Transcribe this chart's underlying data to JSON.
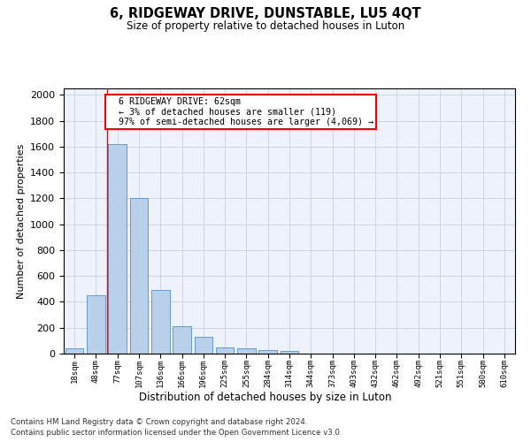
{
  "title": "6, RIDGEWAY DRIVE, DUNSTABLE, LU5 4QT",
  "subtitle": "Size of property relative to detached houses in Luton",
  "xlabel": "Distribution of detached houses by size in Luton",
  "ylabel": "Number of detached properties",
  "footer_line1": "Contains HM Land Registry data © Crown copyright and database right 2024.",
  "footer_line2": "Contains public sector information licensed under the Open Government Licence v3.0.",
  "categories": [
    "18sqm",
    "48sqm",
    "77sqm",
    "107sqm",
    "136sqm",
    "166sqm",
    "196sqm",
    "225sqm",
    "255sqm",
    "284sqm",
    "314sqm",
    "344sqm",
    "373sqm",
    "403sqm",
    "432sqm",
    "462sqm",
    "492sqm",
    "521sqm",
    "551sqm",
    "580sqm",
    "610sqm"
  ],
  "values": [
    40,
    450,
    1620,
    1200,
    490,
    210,
    130,
    50,
    40,
    28,
    18,
    0,
    0,
    0,
    0,
    0,
    0,
    0,
    0,
    0,
    0
  ],
  "bar_color": "#b8d0ea",
  "bar_edge_color": "#6699cc",
  "ylim": [
    0,
    2050
  ],
  "yticks": [
    0,
    200,
    400,
    600,
    800,
    1000,
    1200,
    1400,
    1600,
    1800,
    2000
  ],
  "property_line_color": "red",
  "annotation_line1": "  6 RIDGEWAY DRIVE: 62sqm",
  "annotation_line2": "  ← 3% of detached houses are smaller (119)",
  "annotation_line3": "  97% of semi-detached houses are larger (4,069) →",
  "annotation_box_color": "red",
  "bg_color": "#eef2fb",
  "grid_color": "#c8c8d8"
}
